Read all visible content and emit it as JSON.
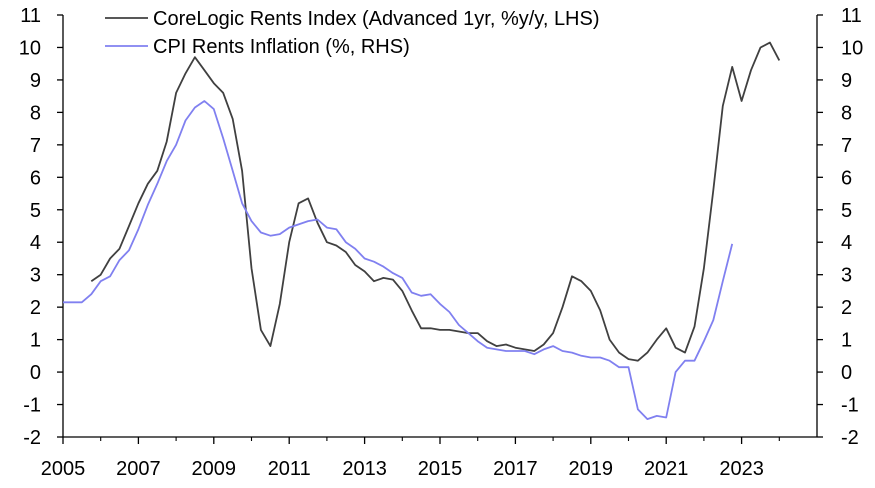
{
  "chart_data": {
    "type": "line",
    "title": "",
    "legend": {
      "placement": "top-left",
      "entries": [
        "CoreLogic Rents Index (Advanced 1yr, %y/y, LHS)",
        "CPI Rents Inflation (%, RHS)"
      ]
    },
    "x_ticks": [
      "2005",
      "2007",
      "2009",
      "2011",
      "2013",
      "2015",
      "2017",
      "2019",
      "2021",
      "2023"
    ],
    "xlim": [
      2005,
      2025
    ],
    "y_left": {
      "ticks": [
        "11",
        "10",
        "9",
        "8",
        "7",
        "6",
        "5",
        "4",
        "3",
        "2",
        "1",
        "0",
        "-1",
        "-2"
      ],
      "lim": [
        -2,
        11
      ]
    },
    "y_right": {
      "ticks": [
        "11",
        "10",
        "9",
        "8",
        "7",
        "6",
        "5",
        "4",
        "3",
        "2",
        "1",
        "0",
        "-1",
        "-2"
      ],
      "lim": [
        -2,
        11
      ]
    },
    "grid": false,
    "series": [
      {
        "name": "CoreLogic Rents Index (Advanced 1yr, %y/y, LHS)",
        "axis": "left",
        "color": "#404040",
        "x": [
          2005.75,
          2006.0,
          2006.25,
          2006.5,
          2006.75,
          2007.0,
          2007.25,
          2007.5,
          2007.75,
          2008.0,
          2008.25,
          2008.5,
          2008.75,
          2009.0,
          2009.25,
          2009.5,
          2009.75,
          2010.0,
          2010.25,
          2010.5,
          2010.75,
          2011.0,
          2011.25,
          2011.5,
          2011.75,
          2012.0,
          2012.25,
          2012.5,
          2012.75,
          2013.0,
          2013.25,
          2013.5,
          2013.75,
          2014.0,
          2014.25,
          2014.5,
          2014.75,
          2015.0,
          2015.25,
          2015.5,
          2015.75,
          2016.0,
          2016.25,
          2016.5,
          2016.75,
          2017.0,
          2017.25,
          2017.5,
          2017.75,
          2018.0,
          2018.25,
          2018.5,
          2018.75,
          2019.0,
          2019.25,
          2019.5,
          2019.75,
          2020.0,
          2020.25,
          2020.5,
          2020.75,
          2021.0,
          2021.25,
          2021.5,
          2021.75,
          2022.0,
          2022.25,
          2022.5,
          2022.75,
          2023.0,
          2023.25,
          2023.5,
          2023.75,
          2024.0
        ],
        "values": [
          2.8,
          3.0,
          3.5,
          3.8,
          4.5,
          5.2,
          5.8,
          6.2,
          7.1,
          8.6,
          9.2,
          9.7,
          9.3,
          8.9,
          8.6,
          7.8,
          6.2,
          3.2,
          1.3,
          0.8,
          2.1,
          4.0,
          5.2,
          5.35,
          4.6,
          4.0,
          3.9,
          3.7,
          3.3,
          3.1,
          2.8,
          2.9,
          2.85,
          2.5,
          1.9,
          1.35,
          1.35,
          1.3,
          1.3,
          1.25,
          1.2,
          1.2,
          0.95,
          0.8,
          0.85,
          0.75,
          0.7,
          0.65,
          0.85,
          1.2,
          2.0,
          2.95,
          2.8,
          2.5,
          1.9,
          1.0,
          0.6,
          0.4,
          0.35,
          0.6,
          1.0,
          1.35,
          0.75,
          0.6,
          1.4,
          3.2,
          5.6,
          8.2,
          9.4,
          8.35,
          9.3,
          10.0,
          10.15,
          9.6
        ]
      },
      {
        "name": "CPI Rents Inflation (%, RHS)",
        "axis": "right",
        "color": "#8080f0",
        "x": [
          2005.0,
          2005.25,
          2005.5,
          2005.75,
          2006.0,
          2006.25,
          2006.5,
          2006.75,
          2007.0,
          2007.25,
          2007.5,
          2007.75,
          2008.0,
          2008.25,
          2008.5,
          2008.75,
          2009.0,
          2009.25,
          2009.5,
          2009.75,
          2010.0,
          2010.25,
          2010.5,
          2010.75,
          2011.0,
          2011.25,
          2011.5,
          2011.75,
          2012.0,
          2012.25,
          2012.5,
          2012.75,
          2013.0,
          2013.25,
          2013.5,
          2013.75,
          2014.0,
          2014.25,
          2014.5,
          2014.75,
          2015.0,
          2015.25,
          2015.5,
          2015.75,
          2016.0,
          2016.25,
          2016.5,
          2016.75,
          2017.0,
          2017.25,
          2017.5,
          2017.75,
          2018.0,
          2018.25,
          2018.5,
          2018.75,
          2019.0,
          2019.25,
          2019.5,
          2019.75,
          2020.0,
          2020.25,
          2020.5,
          2020.75,
          2021.0,
          2021.25,
          2021.5,
          2021.75,
          2022.0,
          2022.25,
          2022.5,
          2022.75
        ],
        "values": [
          2.15,
          2.15,
          2.15,
          2.4,
          2.8,
          2.95,
          3.45,
          3.75,
          4.4,
          5.15,
          5.8,
          6.5,
          7.0,
          7.75,
          8.15,
          8.35,
          8.1,
          7.2,
          6.2,
          5.2,
          4.65,
          4.3,
          4.2,
          4.25,
          4.45,
          4.55,
          4.65,
          4.7,
          4.45,
          4.4,
          4.0,
          3.8,
          3.5,
          3.4,
          3.25,
          3.05,
          2.9,
          2.45,
          2.35,
          2.4,
          2.1,
          1.85,
          1.45,
          1.2,
          0.95,
          0.75,
          0.7,
          0.65,
          0.65,
          0.65,
          0.55,
          0.7,
          0.8,
          0.65,
          0.6,
          0.5,
          0.45,
          0.45,
          0.35,
          0.15,
          0.15,
          -1.15,
          -1.45,
          -1.35,
          -1.4,
          0.0,
          0.35,
          0.35,
          0.95,
          1.6,
          2.8,
          3.95
        ]
      }
    ]
  }
}
